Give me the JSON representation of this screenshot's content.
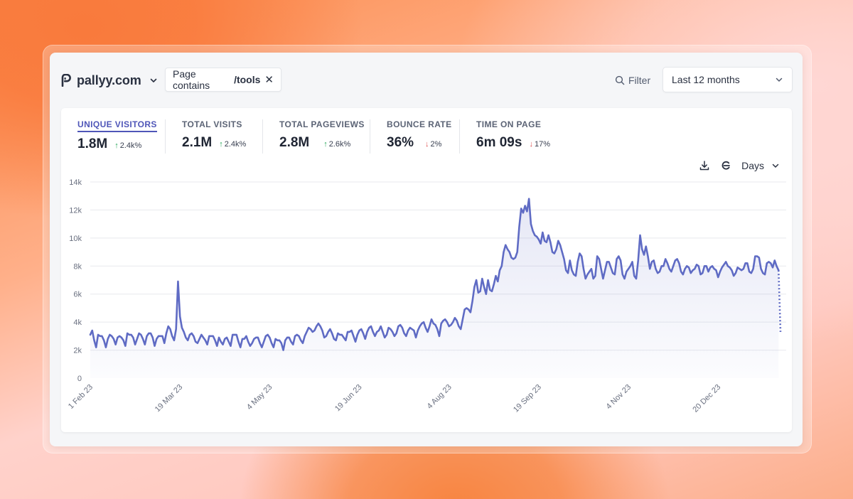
{
  "header": {
    "site_name": "pallyy.com",
    "filter_chip": {
      "prefix": "Page contains",
      "value": "/tools"
    },
    "filter_label": "Filter",
    "date_range": "Last 12 months"
  },
  "stats": [
    {
      "label": "UNIQUE VISITORS",
      "value": "1.8M",
      "change": "2.4k%",
      "direction": "up",
      "active": true
    },
    {
      "label": "TOTAL VISITS",
      "value": "2.1M",
      "change": "2.4k%",
      "direction": "up",
      "active": false
    },
    {
      "label": "TOTAL PAGEVIEWS",
      "value": "2.8M",
      "change": "2.6k%",
      "direction": "up",
      "active": false
    },
    {
      "label": "BOUNCE RATE",
      "value": "36%",
      "change": "2%",
      "direction": "down",
      "active": false
    },
    {
      "label": "TIME ON PAGE",
      "value": "6m 09s",
      "change": "17%",
      "direction": "down",
      "active": false
    }
  ],
  "toolbar": {
    "interval_label": "Days"
  },
  "colors": {
    "accent": "#4f56b8",
    "line": "#5f6bc4",
    "up": "#22a455",
    "down": "#e05353"
  },
  "chart_data": {
    "type": "area",
    "title": "",
    "xlabel": "",
    "ylabel": "",
    "ylim": [
      0,
      14000
    ],
    "yticks": [
      0,
      2000,
      4000,
      6000,
      8000,
      10000,
      12000,
      14000
    ],
    "ytick_labels": [
      "0",
      "2k",
      "4k",
      "6k",
      "8k",
      "10k",
      "12k",
      "14k"
    ],
    "x_tick_labels": [
      "1 Feb 23",
      "19 Mar 23",
      "4 May 23",
      "19 Jun 23",
      "4 Aug 23",
      "19 Sep 23",
      "4 Nov 23",
      "20 Dec 23"
    ],
    "x_tick_days": [
      0,
      46,
      92,
      138,
      184,
      230,
      276,
      322
    ],
    "grid": true,
    "series": [
      {
        "values": [
          3100,
          3400,
          2700,
          2200,
          3100,
          3000,
          3000,
          2700,
          2200,
          2800,
          3100,
          3000,
          2800,
          2400,
          2900,
          3000,
          2900,
          2700,
          2300,
          3200,
          3100,
          3100,
          2900,
          2400,
          2800,
          3200,
          3100,
          2800,
          2400,
          3000,
          3200,
          3200,
          2900,
          2300,
          2800,
          3000,
          3000,
          3000,
          2500,
          3200,
          3700,
          3500,
          3000,
          2700,
          3500,
          6900,
          4400,
          3600,
          3300,
          2900,
          2700,
          3100,
          3200,
          3000,
          2600,
          2500,
          2800,
          3100,
          2900,
          2700,
          2400,
          3000,
          3000,
          3000,
          2700,
          2300,
          2900,
          2600,
          2400,
          2800,
          2900,
          2600,
          2300,
          3100,
          3100,
          3100,
          2600,
          2200,
          2800,
          2800,
          3000,
          2600,
          2300,
          2500,
          2800,
          2900,
          2900,
          2500,
          2200,
          2600,
          3000,
          3100,
          2900,
          2500,
          2200,
          2800,
          2700,
          2700,
          2500,
          2000,
          2700,
          2900,
          2900,
          2600,
          2400,
          3000,
          3100,
          3000,
          2700,
          2500,
          3000,
          3300,
          3600,
          3500,
          3300,
          3400,
          3700,
          3900,
          3700,
          3400,
          2900,
          3000,
          3300,
          3500,
          3200,
          2800,
          2700,
          3200,
          3100,
          3100,
          2900,
          2700,
          3300,
          3300,
          3400,
          3000,
          2600,
          3100,
          3400,
          3500,
          3200,
          2800,
          3300,
          3600,
          3700,
          3300,
          3000,
          3300,
          3400,
          3700,
          3300,
          2900,
          3100,
          3600,
          3500,
          3300,
          3000,
          3200,
          3700,
          3800,
          3600,
          3200,
          3000,
          3400,
          3600,
          3500,
          3400,
          2900,
          3400,
          3700,
          3900,
          4000,
          3600,
          3300,
          3700,
          4200,
          3900,
          3800,
          3500,
          3000,
          3900,
          4100,
          4200,
          4000,
          3700,
          3800,
          4000,
          4300,
          4100,
          3700,
          3500,
          4200,
          4900,
          5000,
          4900,
          4700,
          5500,
          6500,
          7000,
          6100,
          6200,
          7100,
          6500,
          6000,
          7000,
          6300,
          6200,
          6700,
          7300,
          6900,
          7700,
          8000,
          9000,
          9500,
          9200,
          9000,
          8600,
          8500,
          8600,
          9000,
          10800,
          12100,
          11800,
          12300,
          11900,
          12800,
          11000,
          10500,
          10200,
          10100,
          9900,
          9600,
          10400,
          9800,
          9700,
          10200,
          9700,
          9000,
          8900,
          9200,
          9800,
          9500,
          9000,
          8500,
          7700,
          7500,
          8400,
          7700,
          7400,
          7300,
          8300,
          8900,
          8700,
          7800,
          7100,
          7400,
          7600,
          7800,
          7100,
          7300,
          8700,
          8500,
          7800,
          7100,
          7700,
          8300,
          8300,
          7900,
          7500,
          7400,
          8500,
          8700,
          8400,
          7400,
          7100,
          7600,
          7800,
          8000,
          8300,
          7300,
          7100,
          8400,
          10200,
          9200,
          8800,
          9400,
          8700,
          7800,
          8300,
          8400,
          7800,
          7500,
          7600,
          8000,
          8000,
          8500,
          8200,
          7800,
          7600,
          8000,
          8400,
          8500,
          8200,
          7600,
          7400,
          7800,
          8000,
          7900,
          7500,
          7700,
          7800,
          8100,
          8000,
          7400,
          7500,
          8000,
          8000,
          7600,
          7900,
          8000,
          7800,
          7700,
          7200,
          7600,
          7900,
          8100,
          8300,
          8000,
          7900,
          7700,
          7300,
          7500,
          7900,
          7800,
          7700,
          7800,
          8200,
          8200,
          7600,
          7500,
          7800,
          8700,
          8700,
          8600,
          7800,
          7500,
          7400,
          8200,
          8300,
          8200,
          7900,
          8400,
          8000,
          7700,
          3300
        ]
      }
    ],
    "last_point_dotted": true
  }
}
